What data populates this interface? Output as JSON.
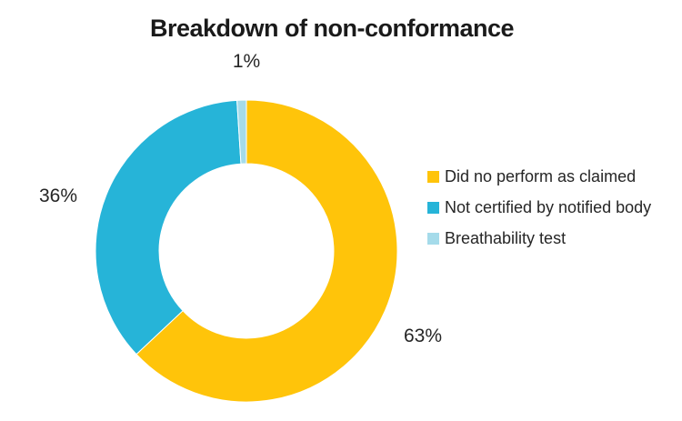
{
  "title": "Breakdown of non-conformance",
  "chart_data": {
    "type": "pie",
    "subtype": "donut",
    "title": "Breakdown of non-conformance",
    "inner_radius_ratio": 0.578,
    "start_angle_deg": 0,
    "direction": "clockwise",
    "legend_position": "right",
    "background_color": "#FFFFFF",
    "text_color": "#262626",
    "series": [
      {
        "label": "Did no perform as claimed",
        "value": 63,
        "data_label": "63%",
        "color": "#FFC40A"
      },
      {
        "label": "Not certified by notified body",
        "value": 36,
        "data_label": "36%",
        "color": "#26B4D8"
      },
      {
        "label": "Breathability test",
        "value": 1,
        "data_label": "1%",
        "color": "#A5DBEA"
      }
    ]
  }
}
